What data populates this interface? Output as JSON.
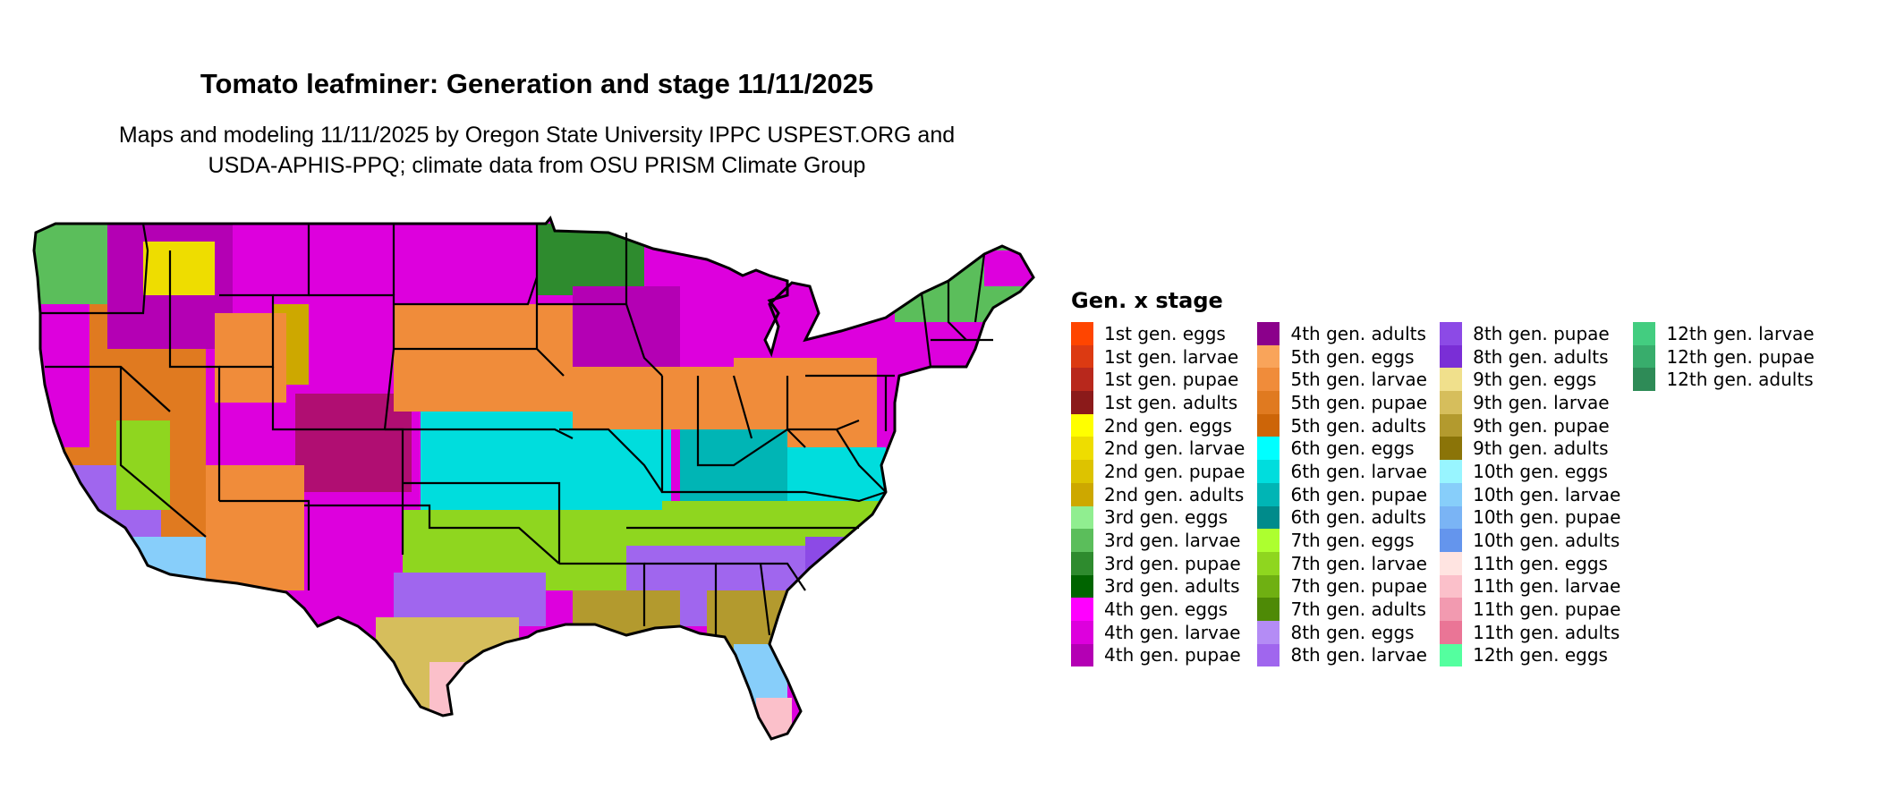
{
  "title": "Tomato leafminer: Generation and stage 11/11/2025",
  "subtitle_lines": [
    "Maps and modeling 11/11/2025 by Oregon State University IPPC USPEST.ORG and",
    "USDA-APHIS-PPQ; climate data from OSU PRISM Climate Group"
  ],
  "legend": {
    "title": "Gen. x stage",
    "columns": [
      [
        {
          "label": "1st gen. eggs",
          "color": "#FF4500"
        },
        {
          "label": "1st gen. larvae",
          "color": "#DC3A12"
        },
        {
          "label": "1st gen. pupae",
          "color": "#B8281C"
        },
        {
          "label": "1st gen. adults",
          "color": "#8B1A1A"
        },
        {
          "label": "2nd gen. eggs",
          "color": "#FFFF00"
        },
        {
          "label": "2nd gen. larvae",
          "color": "#EEDD00"
        },
        {
          "label": "2nd gen. pupae",
          "color": "#DDC300"
        },
        {
          "label": "2nd gen. adults",
          "color": "#CDA800"
        },
        {
          "label": "3rd gen. eggs",
          "color": "#90EE90"
        },
        {
          "label": "3rd gen. larvae",
          "color": "#5BBE5B"
        },
        {
          "label": "3rd gen. pupae",
          "color": "#2E8B2E"
        },
        {
          "label": "3rd gen. adults",
          "color": "#006400"
        },
        {
          "label": "4th gen. eggs",
          "color": "#FF00FF"
        },
        {
          "label": "4th gen. larvae",
          "color": "#DD00DD"
        },
        {
          "label": "4th gen. pupae",
          "color": "#B400B4"
        }
      ],
      [
        {
          "label": "4th gen. adults",
          "color": "#8B008B"
        },
        {
          "label": "5th gen. eggs",
          "color": "#F9A45A"
        },
        {
          "label": "5th gen. larvae",
          "color": "#F08C3A"
        },
        {
          "label": "5th gen. pupae",
          "color": "#E07A20"
        },
        {
          "label": "5th gen. adults",
          "color": "#CD6508"
        },
        {
          "label": "6th gen. eggs",
          "color": "#00FFFF"
        },
        {
          "label": "6th gen. larvae",
          "color": "#00DDDD"
        },
        {
          "label": "6th gen. pupae",
          "color": "#00B5B5"
        },
        {
          "label": "6th gen. adults",
          "color": "#008B8B"
        },
        {
          "label": "7th gen. eggs",
          "color": "#ADFF2F"
        },
        {
          "label": "7th gen. larvae",
          "color": "#8FD61F"
        },
        {
          "label": "7th gen. pupae",
          "color": "#6FB012"
        },
        {
          "label": "7th gen. adults",
          "color": "#4E8A06"
        },
        {
          "label": "8th gen. eggs",
          "color": "#B48CF5"
        },
        {
          "label": "8th gen. larvae",
          "color": "#A066EE"
        }
      ],
      [
        {
          "label": "8th gen. pupae",
          "color": "#8C4AE6"
        },
        {
          "label": "8th gen. adults",
          "color": "#7A2ED6"
        },
        {
          "label": "9th gen. eggs",
          "color": "#F0E08C"
        },
        {
          "label": "9th gen. larvae",
          "color": "#D6BE5C"
        },
        {
          "label": "9th gen. pupae",
          "color": "#B39A2E"
        },
        {
          "label": "9th gen. adults",
          "color": "#8B7408"
        },
        {
          "label": "10th gen. eggs",
          "color": "#98F5FF"
        },
        {
          "label": "10th gen. larvae",
          "color": "#87CEFA"
        },
        {
          "label": "10th gen. pupae",
          "color": "#7AB4F5"
        },
        {
          "label": "10th gen. adults",
          "color": "#6495ED"
        },
        {
          "label": "11th gen. eggs",
          "color": "#FFE4E1"
        },
        {
          "label": "11th gen. larvae",
          "color": "#FBC0CA"
        },
        {
          "label": "11th gen. pupae",
          "color": "#F29AB0"
        },
        {
          "label": "11th gen. adults",
          "color": "#EA7596"
        },
        {
          "label": "12th gen. eggs",
          "color": "#54FF9F"
        }
      ],
      [
        {
          "label": "12th gen. larvae",
          "color": "#43CD80"
        },
        {
          "label": "12th gen. pupae",
          "color": "#38AD6C"
        },
        {
          "label": "12th gen. adults",
          "color": "#2E8B57"
        }
      ]
    ]
  }
}
